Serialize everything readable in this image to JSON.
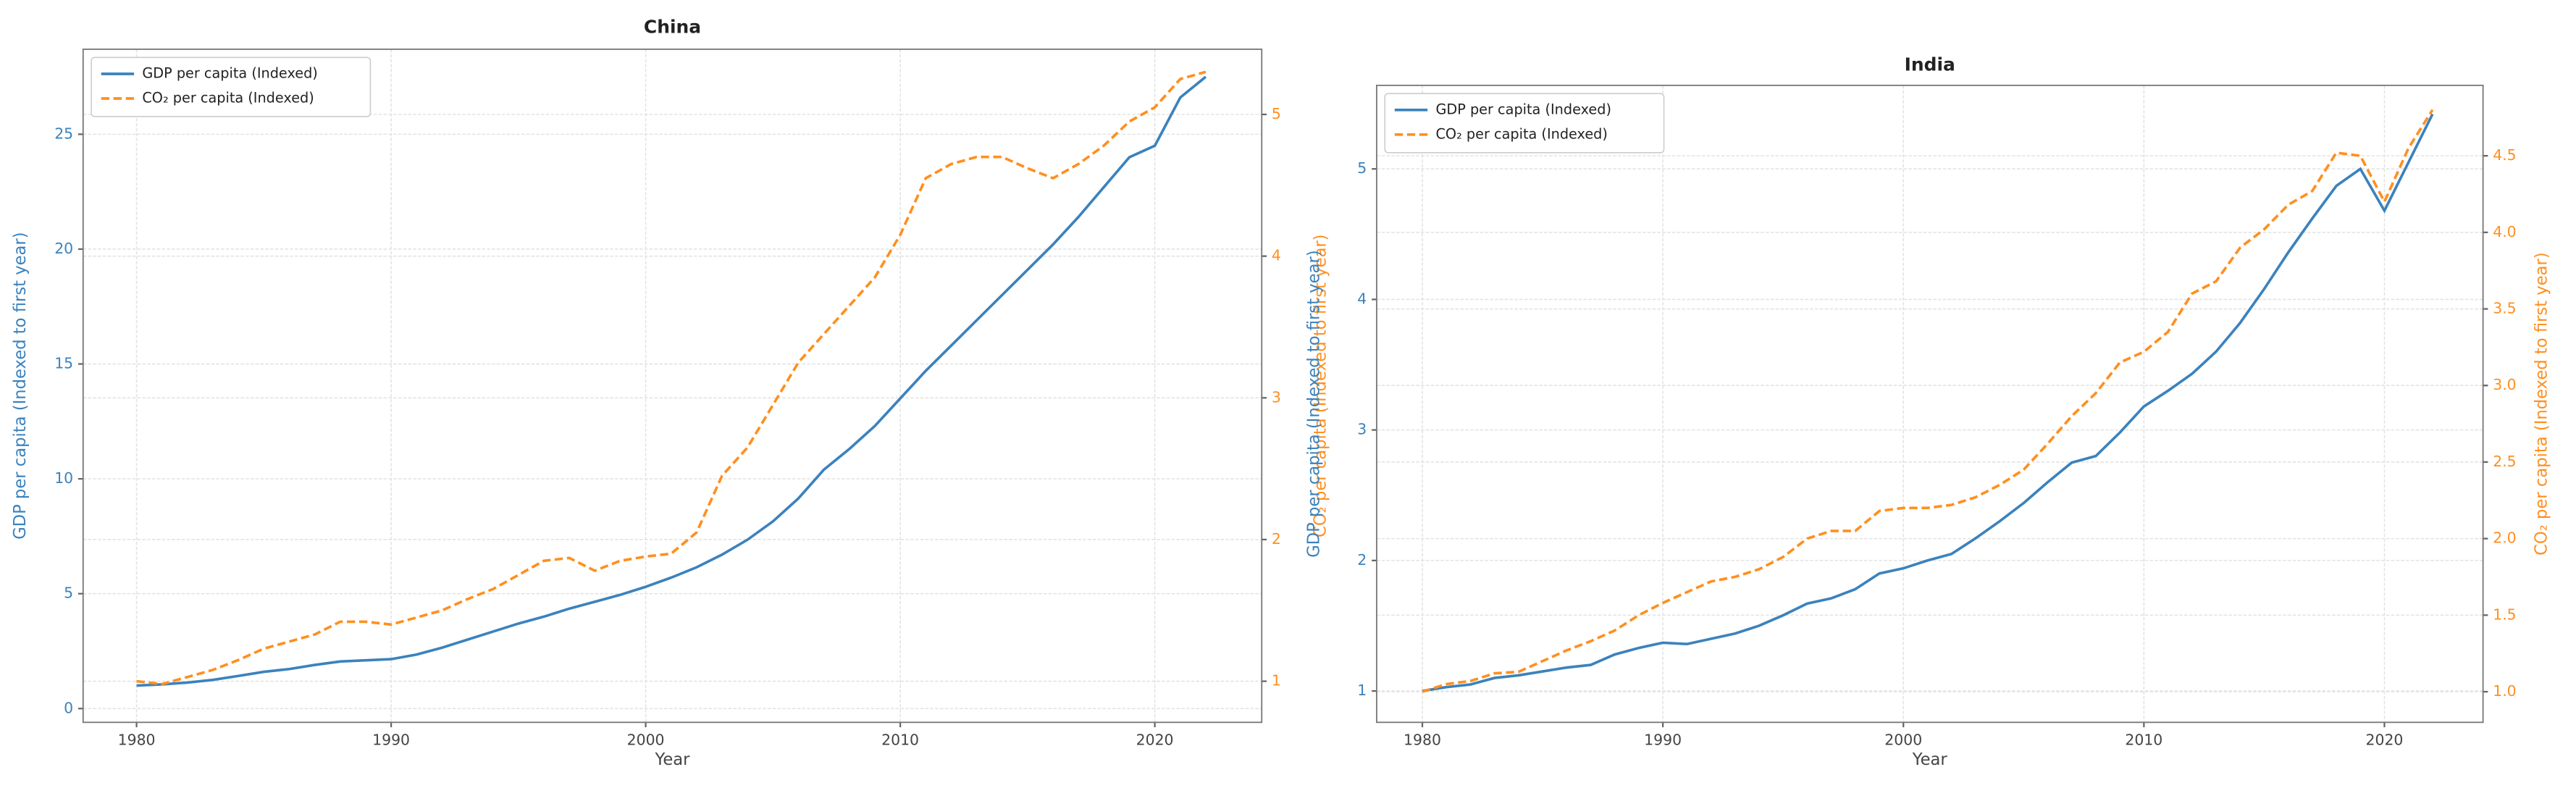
{
  "chart_data": [
    {
      "type": "line",
      "title": "China",
      "xlabel": "Year",
      "ylabel": "GDP per capita (Indexed to first year)",
      "y2label": "CO₂ per capita (Indexed to first year)",
      "grid": true,
      "legend": "upper left",
      "x": [
        1980,
        1981,
        1982,
        1983,
        1984,
        1985,
        1986,
        1987,
        1988,
        1989,
        1990,
        1991,
        1992,
        1993,
        1994,
        1995,
        1996,
        1997,
        1998,
        1999,
        2000,
        2001,
        2002,
        2003,
        2004,
        2005,
        2006,
        2007,
        2008,
        2009,
        2010,
        2011,
        2012,
        2013,
        2014,
        2015,
        2016,
        2017,
        2018,
        2019,
        2020,
        2021,
        2022
      ],
      "xlim": [
        1977.9,
        2024.2
      ],
      "xticks": [
        1980,
        1990,
        2000,
        2010,
        2020
      ],
      "ylim": [
        -0.6,
        28.7
      ],
      "yticks": [
        0,
        5,
        10,
        15,
        20,
        25
      ],
      "y2lim": [
        0.71,
        5.46
      ],
      "y2ticks": [
        1,
        2,
        3,
        4,
        5
      ],
      "series": [
        {
          "name": "GDP per capita (Indexed)",
          "color": "#3b82bd",
          "linestyle": "solid",
          "axis": "y",
          "values": [
            1.0,
            1.05,
            1.13,
            1.25,
            1.42,
            1.6,
            1.72,
            1.9,
            2.05,
            2.1,
            2.15,
            2.35,
            2.65,
            3.0,
            3.35,
            3.7,
            4.0,
            4.35,
            4.65,
            4.95,
            5.3,
            5.7,
            6.15,
            6.7,
            7.35,
            8.15,
            9.15,
            10.4,
            11.3,
            12.3,
            13.5,
            14.7,
            15.8,
            16.9,
            18.0,
            19.1,
            20.2,
            21.4,
            22.7,
            24.0,
            24.5,
            26.6,
            27.5
          ]
        },
        {
          "name": "CO₂ per capita (Indexed)",
          "color": "#ff8f1f",
          "linestyle": "dashed",
          "axis": "y2",
          "values": [
            1.0,
            0.98,
            1.03,
            1.08,
            1.15,
            1.23,
            1.28,
            1.33,
            1.42,
            1.42,
            1.4,
            1.45,
            1.5,
            1.58,
            1.65,
            1.75,
            1.85,
            1.87,
            1.78,
            1.85,
            1.88,
            1.9,
            2.05,
            2.45,
            2.65,
            2.95,
            3.25,
            3.45,
            3.65,
            3.85,
            4.15,
            4.55,
            4.65,
            4.7,
            4.7,
            4.62,
            4.55,
            4.65,
            4.78,
            4.95,
            5.05,
            5.25,
            5.3
          ]
        }
      ]
    },
    {
      "type": "line",
      "title": "India",
      "xlabel": "Year",
      "ylabel": "GDP per capita (Indexed to first year)",
      "y2label": "CO₂ per capita (Indexed to first year)",
      "grid": true,
      "legend": "upper left",
      "x": [
        1980,
        1981,
        1982,
        1983,
        1984,
        1985,
        1986,
        1987,
        1988,
        1989,
        1990,
        1991,
        1992,
        1993,
        1994,
        1995,
        1996,
        1997,
        1998,
        1999,
        2000,
        2001,
        2002,
        2003,
        2004,
        2005,
        2006,
        2007,
        2008,
        2009,
        2010,
        2011,
        2012,
        2013,
        2014,
        2015,
        2016,
        2017,
        2018,
        2019,
        2020,
        2021,
        2022
      ],
      "xlim": [
        1978.1,
        2024.1
      ],
      "xticks": [
        1980,
        1990,
        2000,
        2010,
        2020
      ],
      "ylim": [
        0.76,
        5.64
      ],
      "yticks": [
        1,
        2,
        3,
        4,
        5
      ],
      "y2lim": [
        0.8,
        4.96
      ],
      "y2ticks": [
        {
          "value": 1,
          "label": "1.0"
        },
        1.5,
        {
          "value": 2,
          "label": "2.0"
        },
        2.5,
        {
          "value": 3,
          "label": "3.0"
        },
        3.5,
        {
          "value": 4,
          "label": "4.0"
        },
        4.5
      ],
      "series": [
        {
          "name": "GDP per capita (Indexed)",
          "color": "#3b82bd",
          "linestyle": "solid",
          "axis": "y",
          "values": [
            1.0,
            1.03,
            1.05,
            1.1,
            1.12,
            1.15,
            1.18,
            1.2,
            1.28,
            1.33,
            1.37,
            1.36,
            1.4,
            1.44,
            1.5,
            1.58,
            1.67,
            1.71,
            1.78,
            1.9,
            1.94,
            2.0,
            2.05,
            2.17,
            2.3,
            2.44,
            2.6,
            2.75,
            2.8,
            2.98,
            3.18,
            3.3,
            3.43,
            3.6,
            3.82,
            4.08,
            4.36,
            4.62,
            4.87,
            5.0,
            4.68,
            5.05,
            5.42
          ]
        },
        {
          "name": "CO₂ per capita (Indexed)",
          "color": "#ff8f1f",
          "linestyle": "dashed",
          "axis": "y2",
          "values": [
            1.0,
            1.05,
            1.07,
            1.12,
            1.13,
            1.2,
            1.27,
            1.33,
            1.4,
            1.5,
            1.58,
            1.65,
            1.72,
            1.75,
            1.8,
            1.88,
            2.0,
            2.05,
            2.05,
            2.18,
            2.2,
            2.2,
            2.22,
            2.27,
            2.35,
            2.45,
            2.62,
            2.8,
            2.95,
            3.15,
            3.22,
            3.35,
            3.6,
            3.68,
            3.9,
            4.02,
            4.18,
            4.27,
            4.52,
            4.5,
            4.2,
            4.55,
            4.8
          ]
        }
      ]
    }
  ]
}
